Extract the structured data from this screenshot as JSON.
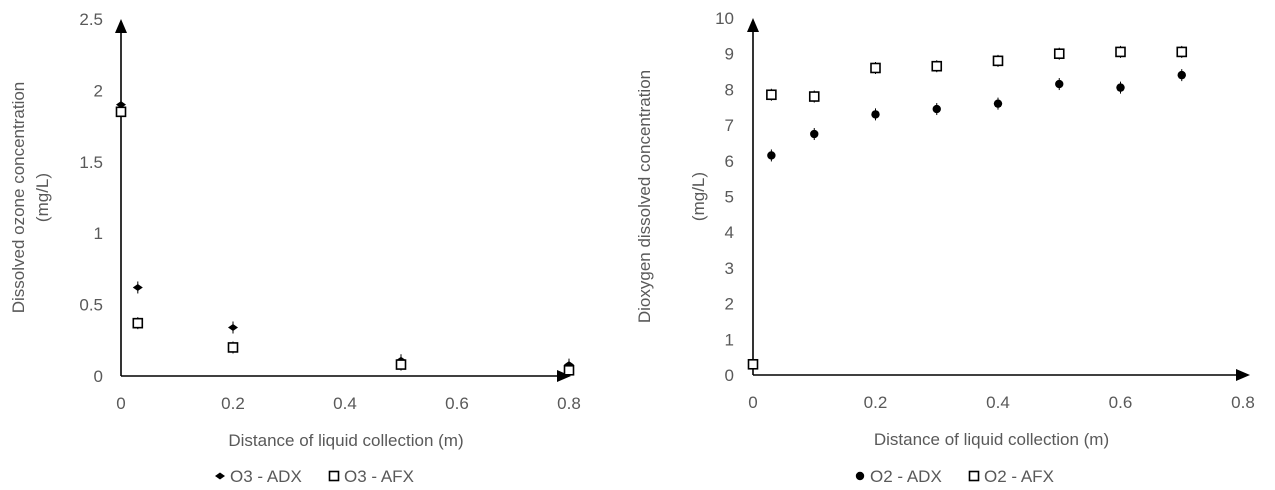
{
  "chart_data": [
    {
      "type": "scatter",
      "xlabel": "Distance of liquid collection (m)",
      "ylabel": "Dissolved ozone concentration\n(mg/L)",
      "xlim": [
        0,
        0.8
      ],
      "ylim": [
        0,
        2.5
      ],
      "x_ticks": [
        "0",
        "0.2",
        "0.4",
        "0.6",
        "0.8"
      ],
      "y_ticks": [
        "0",
        "0.5",
        "1",
        "1.5",
        "2",
        "2.5"
      ],
      "grid": false,
      "legend_position": "bottom",
      "series": [
        {
          "name": "O3 - ADX",
          "marker": "filled-diamond",
          "color": "#000000",
          "x": [
            0,
            0.03,
            0.2,
            0.5,
            0.8
          ],
          "y": [
            1.9,
            0.62,
            0.34,
            0.11,
            0.08
          ]
        },
        {
          "name": "O3 - AFX",
          "marker": "open-square",
          "color": "#000000",
          "x": [
            0,
            0.03,
            0.2,
            0.5,
            0.8
          ],
          "y": [
            1.85,
            0.37,
            0.2,
            0.08,
            0.04
          ]
        }
      ]
    },
    {
      "type": "scatter",
      "xlabel": "Distance of liquid collection (m)",
      "ylabel": "Dioxygen dissolved concentration\n(mg/L)",
      "xlim": [
        0,
        0.8
      ],
      "ylim": [
        0,
        10
      ],
      "x_ticks": [
        "0",
        "0.2",
        "0.4",
        "0.6",
        "0.8"
      ],
      "y_ticks": [
        "0",
        "1",
        "2",
        "3",
        "4",
        "5",
        "6",
        "7",
        "8",
        "9",
        "10"
      ],
      "grid": false,
      "legend_position": "bottom",
      "series": [
        {
          "name": "O2 - ADX",
          "marker": "filled-circle",
          "color": "#000000",
          "x": [
            0.03,
            0.1,
            0.2,
            0.3,
            0.4,
            0.5,
            0.6,
            0.7
          ],
          "y": [
            6.15,
            6.75,
            7.3,
            7.45,
            7.6,
            8.15,
            8.05,
            8.4
          ]
        },
        {
          "name": "O2 - AFX",
          "marker": "open-square",
          "color": "#000000",
          "x": [
            0,
            0.03,
            0.1,
            0.2,
            0.3,
            0.4,
            0.5,
            0.6,
            0.7
          ],
          "y": [
            0.3,
            7.85,
            7.8,
            8.6,
            8.65,
            8.8,
            9.0,
            9.05,
            9.05
          ]
        }
      ]
    }
  ]
}
